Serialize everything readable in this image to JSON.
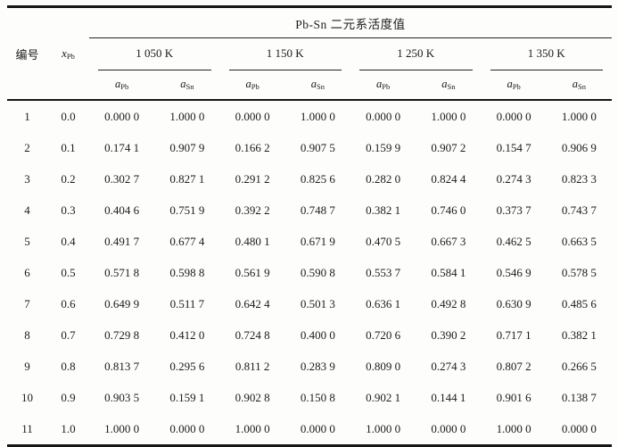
{
  "table": {
    "title": "Pb-Sn 二元系活度值",
    "col_headers": {
      "id_label": "编号",
      "x_base": "x",
      "x_sub": "Pb"
    },
    "groups": [
      {
        "label": "1 050 K"
      },
      {
        "label": "1 150 K"
      },
      {
        "label": "1 250 K"
      },
      {
        "label": "1 350 K"
      }
    ],
    "subheaders": [
      {
        "base": "a",
        "sub": "Pb"
      },
      {
        "base": "a",
        "sub": "Sn"
      },
      {
        "base": "a",
        "sub": "Pb"
      },
      {
        "base": "a",
        "sub": "Sn"
      },
      {
        "base": "a",
        "sub": "Pb"
      },
      {
        "base": "a",
        "sub": "Sn"
      },
      {
        "base": "a",
        "sub": "Pb"
      },
      {
        "base": "a",
        "sub": "Sn"
      }
    ],
    "rows": [
      {
        "id": "1",
        "x": "0.0",
        "values": [
          "0.000 0",
          "1.000 0",
          "0.000 0",
          "1.000 0",
          "0.000 0",
          "1.000 0",
          "0.000 0",
          "1.000 0"
        ]
      },
      {
        "id": "2",
        "x": "0.1",
        "values": [
          "0.174 1",
          "0.907 9",
          "0.166 2",
          "0.907 5",
          "0.159 9",
          "0.907 2",
          "0.154 7",
          "0.906 9"
        ]
      },
      {
        "id": "3",
        "x": "0.2",
        "values": [
          "0.302 7",
          "0.827 1",
          "0.291 2",
          "0.825 6",
          "0.282 0",
          "0.824 4",
          "0.274 3",
          "0.823 3"
        ]
      },
      {
        "id": "4",
        "x": "0.3",
        "values": [
          "0.404 6",
          "0.751 9",
          "0.392 2",
          "0.748 7",
          "0.382 1",
          "0.746 0",
          "0.373 7",
          "0.743 7"
        ]
      },
      {
        "id": "5",
        "x": "0.4",
        "values": [
          "0.491 7",
          "0.677 4",
          "0.480 1",
          "0.671 9",
          "0.470 5",
          "0.667 3",
          "0.462 5",
          "0.663 5"
        ]
      },
      {
        "id": "6",
        "x": "0.5",
        "values": [
          "0.571 8",
          "0.598 8",
          "0.561 9",
          "0.590 8",
          "0.553 7",
          "0.584 1",
          "0.546 9",
          "0.578 5"
        ]
      },
      {
        "id": "7",
        "x": "0.6",
        "values": [
          "0.649 9",
          "0.511 7",
          "0.642 4",
          "0.501 3",
          "0.636 1",
          "0.492 8",
          "0.630 9",
          "0.485 6"
        ]
      },
      {
        "id": "8",
        "x": "0.7",
        "values": [
          "0.729 8",
          "0.412 0",
          "0.724 8",
          "0.400 0",
          "0.720 6",
          "0.390 2",
          "0.717 1",
          "0.382 1"
        ]
      },
      {
        "id": "9",
        "x": "0.8",
        "values": [
          "0.813 7",
          "0.295 6",
          "0.811 2",
          "0.283 9",
          "0.809 0",
          "0.274 3",
          "0.807 2",
          "0.266 5"
        ]
      },
      {
        "id": "10",
        "x": "0.9",
        "values": [
          "0.903 5",
          "0.159 1",
          "0.902 8",
          "0.150 8",
          "0.902 1",
          "0.144 1",
          "0.901 6",
          "0.138 7"
        ]
      },
      {
        "id": "11",
        "x": "1.0",
        "values": [
          "1.000 0",
          "0.000 0",
          "1.000 0",
          "0.000 0",
          "1.000 0",
          "0.000 0",
          "1.000 0",
          "0.000 0"
        ]
      }
    ]
  }
}
